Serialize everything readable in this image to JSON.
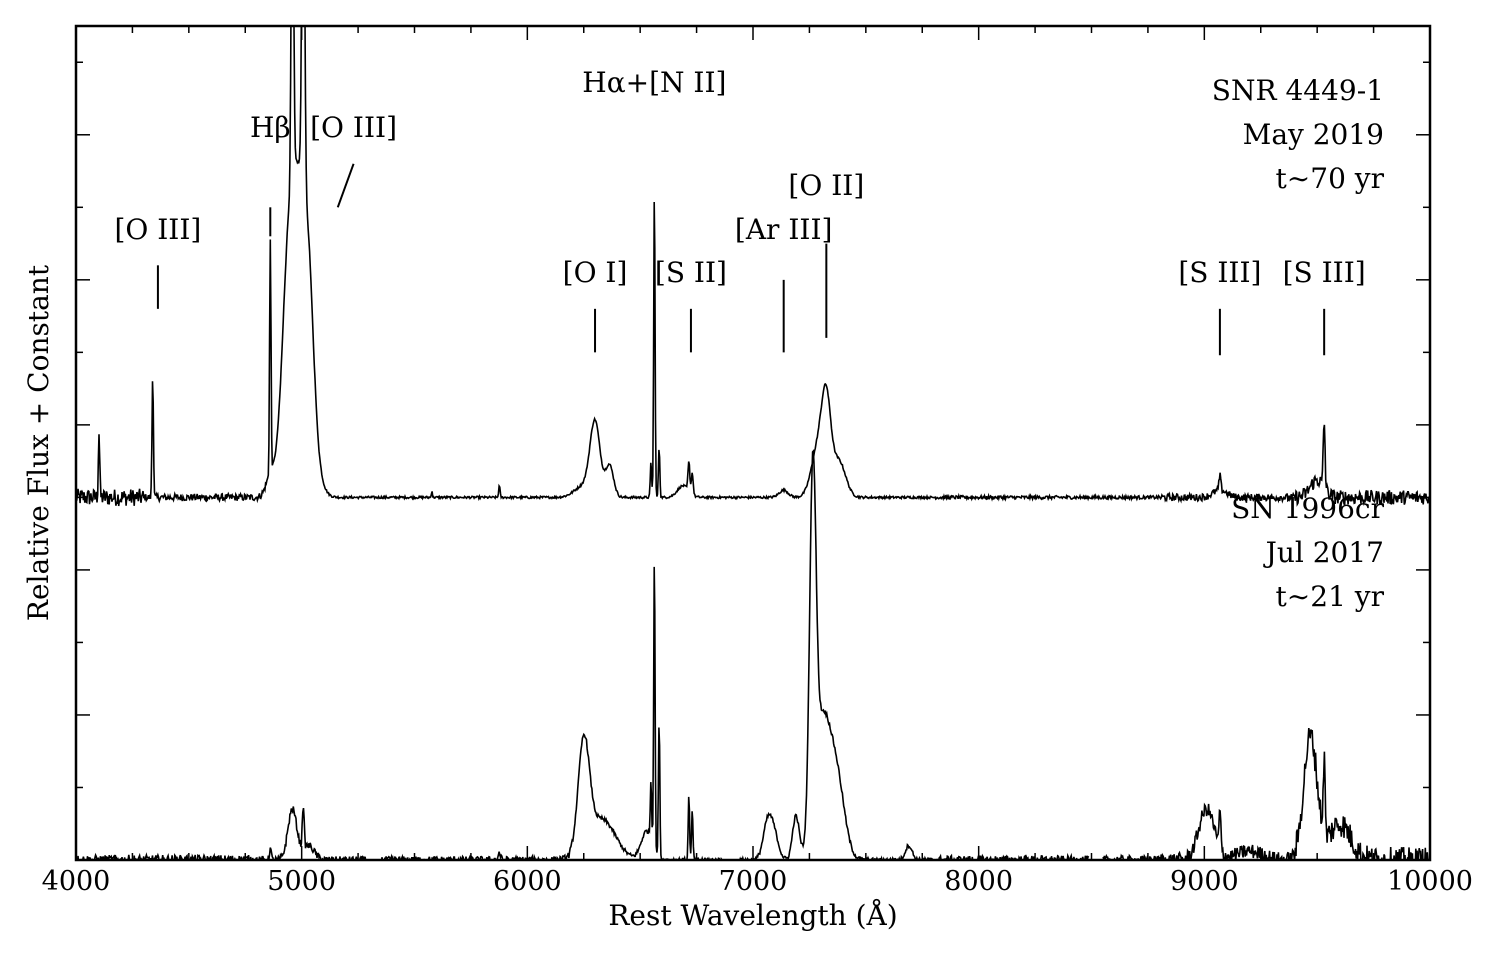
{
  "chart_data": {
    "type": "line",
    "xlabel": "Rest Wavelength (Å)",
    "ylabel": "Relative Flux + Constant",
    "xlim": [
      4000,
      10000
    ],
    "x_ticks": [
      4000,
      5000,
      6000,
      7000,
      8000,
      9000,
      10000
    ],
    "x_tick_labels": [
      "4000",
      "5000",
      "6000",
      "7000",
      "8000",
      "9000",
      "10000"
    ],
    "ylim": [
      0,
      5.75
    ],
    "grid": false,
    "legend": "none",
    "colors": {
      "line": "#000000",
      "background": "#ffffff"
    },
    "series": [
      {
        "annotation": [
          "SNR 4449-1",
          "May 2019",
          "t∼70 yr"
        ],
        "offset": 2.5,
        "continuum": 0.0,
        "noise": [
          {
            "x0": 4000,
            "x1": 4300,
            "amp": 0.06
          },
          {
            "x0": 4300,
            "x1": 4850,
            "amp": 0.025
          },
          {
            "x0": 4850,
            "x1": 5100,
            "amp": 0.01
          },
          {
            "x0": 5100,
            "x1": 7800,
            "amp": 0.008
          },
          {
            "x0": 7800,
            "x1": 8800,
            "amp": 0.012
          },
          {
            "x0": 8800,
            "x1": 9400,
            "amp": 0.025
          },
          {
            "x0": 9400,
            "x1": 10000,
            "amp": 0.05
          }
        ],
        "features": [
          {
            "c": 4102,
            "a": 0.45,
            "s": 3
          },
          {
            "c": 4340,
            "a": 0.85,
            "s": 3
          },
          {
            "c": 4861,
            "a": 1.6,
            "s": 3
          },
          {
            "c": 4861,
            "a": 0.12,
            "s": 20
          },
          {
            "c": 4959,
            "a": 2.55,
            "s": 5
          },
          {
            "c": 5007,
            "a": 2.8,
            "s": 6
          },
          {
            "c": 4985,
            "a": 2.2,
            "s": 45
          },
          {
            "c": 4935,
            "a": 0.6,
            "s": 25
          },
          {
            "c": 5035,
            "a": 0.5,
            "s": 20
          },
          {
            "c": 5577,
            "a": 0.05,
            "s": 2
          },
          {
            "c": 5876,
            "a": 0.08,
            "s": 3
          },
          {
            "c": 6300,
            "a": 0.5,
            "s": 22
          },
          {
            "c": 6364,
            "a": 0.22,
            "s": 18
          },
          {
            "c": 6250,
            "a": 0.08,
            "s": 40
          },
          {
            "c": 6563,
            "a": 2.15,
            "s": 3
          },
          {
            "c": 6548,
            "a": 0.25,
            "s": 3
          },
          {
            "c": 6584,
            "a": 0.35,
            "s": 3
          },
          {
            "c": 6716,
            "a": 0.2,
            "s": 4
          },
          {
            "c": 6731,
            "a": 0.15,
            "s": 4
          },
          {
            "c": 6690,
            "a": 0.08,
            "s": 25
          },
          {
            "c": 7136,
            "a": 0.05,
            "s": 20
          },
          {
            "c": 7325,
            "a": 0.55,
            "s": 20
          },
          {
            "c": 7290,
            "a": 0.35,
            "s": 30
          },
          {
            "c": 7380,
            "a": 0.25,
            "s": 30
          },
          {
            "c": 9069,
            "a": 0.1,
            "s": 4
          },
          {
            "c": 9069,
            "a": 0.05,
            "s": 30
          },
          {
            "c": 9531,
            "a": 0.45,
            "s": 4
          },
          {
            "c": 9500,
            "a": 0.12,
            "s": 30
          }
        ]
      },
      {
        "annotation": [
          "SN 1996cr",
          "Jul 2017",
          "t∼21 yr"
        ],
        "offset": 0,
        "continuum": 0.0,
        "gaps": [
          [
            5285,
            5350
          ],
          [
            6870,
            6940
          ],
          [
            8490,
            8550
          ]
        ],
        "noise": [
          {
            "x0": 4000,
            "x1": 4800,
            "amp": 0.035
          },
          {
            "x0": 4800,
            "x1": 6200,
            "amp": 0.025
          },
          {
            "x0": 6200,
            "x1": 7800,
            "amp": 0.015
          },
          {
            "x0": 7800,
            "x1": 8800,
            "amp": 0.03
          },
          {
            "x0": 8800,
            "x1": 9400,
            "amp": 0.05
          },
          {
            "x0": 9400,
            "x1": 10000,
            "amp": 0.09
          }
        ],
        "features": [
          {
            "c": 4861,
            "a": 0.08,
            "s": 4
          },
          {
            "c": 4959,
            "a": 0.35,
            "s": 20
          },
          {
            "c": 5007,
            "a": 0.3,
            "s": 4
          },
          {
            "c": 5030,
            "a": 0.1,
            "s": 25
          },
          {
            "c": 5876,
            "a": 0.05,
            "s": 5
          },
          {
            "c": 6250,
            "a": 0.75,
            "s": 25
          },
          {
            "c": 6330,
            "a": 0.28,
            "s": 60
          },
          {
            "c": 6530,
            "a": 0.2,
            "s": 25
          },
          {
            "c": 6548,
            "a": 0.4,
            "s": 3
          },
          {
            "c": 6563,
            "a": 2.05,
            "s": 3
          },
          {
            "c": 6584,
            "a": 0.95,
            "s": 3
          },
          {
            "c": 6716,
            "a": 0.45,
            "s": 3
          },
          {
            "c": 6731,
            "a": 0.35,
            "s": 3
          },
          {
            "c": 7065,
            "a": 0.25,
            "s": 20
          },
          {
            "c": 7095,
            "a": 0.15,
            "s": 20
          },
          {
            "c": 7190,
            "a": 0.3,
            "s": 15
          },
          {
            "c": 7265,
            "a": 2.35,
            "s": 14
          },
          {
            "c": 7305,
            "a": 0.9,
            "s": 35
          },
          {
            "c": 7370,
            "a": 0.55,
            "s": 35
          },
          {
            "c": 7690,
            "a": 0.1,
            "s": 15
          },
          {
            "c": 9010,
            "a": 0.35,
            "s": 35
          },
          {
            "c": 9069,
            "a": 0.25,
            "s": 4
          },
          {
            "c": 9200,
            "a": 0.06,
            "s": 60
          },
          {
            "c": 9470,
            "a": 0.85,
            "s": 30
          },
          {
            "c": 9531,
            "a": 0.5,
            "s": 4
          },
          {
            "c": 9600,
            "a": 0.25,
            "s": 50
          }
        ]
      }
    ],
    "line_labels": [
      {
        "text": "[O III]",
        "x": 4363,
        "mark": [
          4363,
          1.6,
          1.3
        ]
      },
      {
        "text": "Hβ",
        "x": 4861,
        "mark": [
          4861,
          2.0,
          1.8
        ]
      },
      {
        "text": "[O III]",
        "x": 5230,
        "mark_slant": [
          5230,
          2.3,
          5160,
          2.0
        ]
      },
      {
        "text": "Hα+[N II]",
        "x": 6563,
        "mark": null
      },
      {
        "text": "[O I]",
        "x": 6300,
        "mark": [
          6300,
          1.3,
          1.0
        ]
      },
      {
        "text": "[S II]",
        "x": 6725,
        "mark": [
          6725,
          1.3,
          1.0
        ]
      },
      {
        "text": "[Ar III]",
        "x": 7136,
        "mark": [
          7136,
          1.5,
          1.0
        ]
      },
      {
        "text": "[O II]",
        "x": 7325,
        "mark": [
          7325,
          1.75,
          1.1
        ]
      },
      {
        "text": "[S III]",
        "x": 9069,
        "mark": [
          9069,
          1.3,
          0.98
        ]
      },
      {
        "text": "[S III]",
        "x": 9531,
        "mark": [
          9531,
          1.3,
          0.98
        ]
      }
    ]
  }
}
